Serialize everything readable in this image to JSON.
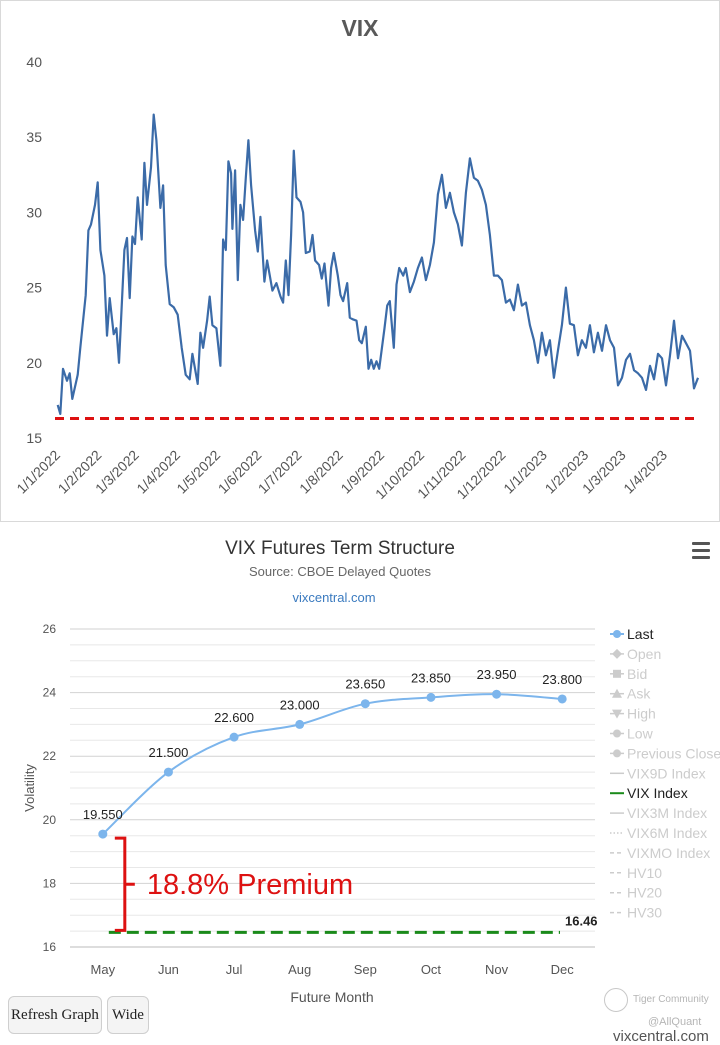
{
  "chart_data": [
    {
      "type": "line",
      "title": "VIX",
      "ylim": [
        15,
        40
      ],
      "yticks": [
        15,
        20,
        25,
        30,
        35,
        40
      ],
      "xtick_labels": [
        "1/1/2022",
        "1/2/2022",
        "1/3/2022",
        "1/4/2022",
        "1/5/2022",
        "1/6/2022",
        "1/7/2022",
        "1/8/2022",
        "1/9/2022",
        "1/10/2022",
        "1/11/2022",
        "1/12/2022",
        "1/1/2023",
        "1/2/2023",
        "1/3/2023",
        "1/4/2023"
      ],
      "x_range": [
        "2022-01-01",
        "2023-04-28"
      ],
      "reference_line": {
        "value": 16.3,
        "style": "dashed",
        "color": "#dd1111"
      },
      "line_color": "#3b6ba8",
      "series": [
        {
          "points": [
            [
              "2022-01-03",
              17.2
            ],
            [
              "2022-01-05",
              16.6
            ],
            [
              "2022-01-07",
              19.6
            ],
            [
              "2022-01-10",
              18.8
            ],
            [
              "2022-01-12",
              19.3
            ],
            [
              "2022-01-14",
              17.6
            ],
            [
              "2022-01-18",
              19.2
            ],
            [
              "2022-01-20",
              21.0
            ],
            [
              "2022-01-24",
              24.5
            ],
            [
              "2022-01-26",
              28.8
            ],
            [
              "2022-01-28",
              29.2
            ],
            [
              "2022-01-31",
              30.5
            ],
            [
              "2022-02-02",
              32.0
            ],
            [
              "2022-02-04",
              27.5
            ],
            [
              "2022-02-07",
              25.8
            ],
            [
              "2022-02-09",
              21.8
            ],
            [
              "2022-02-11",
              24.3
            ],
            [
              "2022-02-14",
              21.9
            ],
            [
              "2022-02-16",
              22.3
            ],
            [
              "2022-02-18",
              20.0
            ],
            [
              "2022-02-22",
              27.5
            ],
            [
              "2022-02-24",
              28.3
            ],
            [
              "2022-02-26",
              24.3
            ],
            [
              "2022-02-28",
              28.4
            ],
            [
              "2022-03-02",
              27.9
            ],
            [
              "2022-03-04",
              31.0
            ],
            [
              "2022-03-07",
              28.2
            ],
            [
              "2022-03-09",
              33.3
            ],
            [
              "2022-03-11",
              30.5
            ],
            [
              "2022-03-14",
              33.0
            ],
            [
              "2022-03-16",
              36.5
            ],
            [
              "2022-03-18",
              34.8
            ],
            [
              "2022-03-21",
              30.3
            ],
            [
              "2022-03-23",
              31.8
            ],
            [
              "2022-03-25",
              26.5
            ],
            [
              "2022-03-28",
              23.9
            ],
            [
              "2022-03-31",
              23.7
            ],
            [
              "2022-04-03",
              23.2
            ],
            [
              "2022-04-06",
              21.0
            ],
            [
              "2022-04-09",
              19.2
            ],
            [
              "2022-04-12",
              18.9
            ],
            [
              "2022-04-14",
              20.6
            ],
            [
              "2022-04-18",
              18.6
            ],
            [
              "2022-04-20",
              22.0
            ],
            [
              "2022-04-22",
              21.0
            ],
            [
              "2022-04-25",
              22.8
            ],
            [
              "2022-04-27",
              24.4
            ],
            [
              "2022-04-29",
              22.5
            ],
            [
              "2022-05-02",
              22.3
            ],
            [
              "2022-05-05",
              19.8
            ],
            [
              "2022-05-07",
              28.2
            ],
            [
              "2022-05-09",
              27.5
            ],
            [
              "2022-05-11",
              33.4
            ],
            [
              "2022-05-13",
              32.6
            ],
            [
              "2022-05-14",
              28.9
            ],
            [
              "2022-05-16",
              32.8
            ],
            [
              "2022-05-18",
              25.5
            ],
            [
              "2022-05-20",
              30.5
            ],
            [
              "2022-05-22",
              29.5
            ],
            [
              "2022-05-24",
              32.3
            ],
            [
              "2022-05-26",
              34.8
            ],
            [
              "2022-05-28",
              31.8
            ],
            [
              "2022-05-31",
              28.8
            ],
            [
              "2022-06-02",
              27.4
            ],
            [
              "2022-06-04",
              29.7
            ],
            [
              "2022-06-07",
              25.4
            ],
            [
              "2022-06-09",
              26.8
            ],
            [
              "2022-06-11",
              25.8
            ],
            [
              "2022-06-13",
              24.8
            ],
            [
              "2022-06-16",
              25.3
            ],
            [
              "2022-06-19",
              24.4
            ],
            [
              "2022-06-21",
              24.0
            ],
            [
              "2022-06-23",
              26.8
            ],
            [
              "2022-06-25",
              24.5
            ],
            [
              "2022-06-27",
              28.5
            ],
            [
              "2022-06-29",
              34.1
            ],
            [
              "2022-07-01",
              31.0
            ],
            [
              "2022-07-04",
              30.7
            ],
            [
              "2022-07-06",
              30.0
            ],
            [
              "2022-07-08",
              27.3
            ],
            [
              "2022-07-11",
              27.4
            ],
            [
              "2022-07-13",
              28.5
            ],
            [
              "2022-07-15",
              26.8
            ],
            [
              "2022-07-18",
              26.5
            ],
            [
              "2022-07-20",
              25.6
            ],
            [
              "2022-07-22",
              26.6
            ],
            [
              "2022-07-25",
              23.8
            ],
            [
              "2022-07-27",
              26.3
            ],
            [
              "2022-07-29",
              27.3
            ],
            [
              "2022-08-01",
              25.8
            ],
            [
              "2022-08-03",
              24.5
            ],
            [
              "2022-08-05",
              24.1
            ],
            [
              "2022-08-08",
              25.3
            ],
            [
              "2022-08-10",
              23.0
            ],
            [
              "2022-08-12",
              22.9
            ],
            [
              "2022-08-15",
              22.8
            ],
            [
              "2022-08-17",
              21.5
            ],
            [
              "2022-08-19",
              21.3
            ],
            [
              "2022-08-22",
              22.4
            ],
            [
              "2022-08-24",
              19.6
            ],
            [
              "2022-08-26",
              20.2
            ],
            [
              "2022-08-28",
              19.6
            ],
            [
              "2022-08-30",
              20.1
            ],
            [
              "2022-09-01",
              19.6
            ],
            [
              "2022-09-05",
              22.3
            ],
            [
              "2022-09-07",
              23.8
            ],
            [
              "2022-09-09",
              24.1
            ],
            [
              "2022-09-12",
              21.0
            ],
            [
              "2022-09-14",
              25.2
            ],
            [
              "2022-09-16",
              26.3
            ],
            [
              "2022-09-19",
              25.8
            ],
            [
              "2022-09-21",
              26.3
            ],
            [
              "2022-09-24",
              24.7
            ],
            [
              "2022-09-27",
              25.4
            ],
            [
              "2022-09-30",
              26.3
            ],
            [
              "2022-10-03",
              27.0
            ],
            [
              "2022-10-06",
              25.5
            ],
            [
              "2022-10-09",
              26.5
            ],
            [
              "2022-10-12",
              28.0
            ],
            [
              "2022-10-15",
              31.2
            ],
            [
              "2022-10-18",
              32.5
            ],
            [
              "2022-10-21",
              30.3
            ],
            [
              "2022-10-24",
              31.3
            ],
            [
              "2022-10-27",
              30.0
            ],
            [
              "2022-10-30",
              29.2
            ],
            [
              "2022-11-02",
              27.8
            ],
            [
              "2022-11-05",
              31.3
            ],
            [
              "2022-11-08",
              33.6
            ],
            [
              "2022-11-11",
              32.3
            ],
            [
              "2022-11-14",
              32.1
            ],
            [
              "2022-11-17",
              31.5
            ],
            [
              "2022-11-20",
              30.5
            ],
            [
              "2022-11-23",
              28.5
            ],
            [
              "2022-11-26",
              25.8
            ],
            [
              "2022-11-29",
              25.8
            ],
            [
              "2022-12-02",
              25.5
            ],
            [
              "2022-12-05",
              24.0
            ],
            [
              "2022-12-08",
              24.2
            ],
            [
              "2022-12-11",
              23.5
            ],
            [
              "2022-12-14",
              25.2
            ],
            [
              "2022-12-17",
              23.8
            ],
            [
              "2022-12-20",
              24.0
            ],
            [
              "2022-12-23",
              22.5
            ],
            [
              "2022-12-26",
              21.5
            ],
            [
              "2022-12-29",
              20.0
            ],
            [
              "2023-01-01",
              22.0
            ],
            [
              "2023-01-04",
              20.5
            ],
            [
              "2023-01-07",
              21.5
            ],
            [
              "2023-01-10",
              19.0
            ],
            [
              "2023-01-13",
              20.8
            ],
            [
              "2023-01-16",
              22.5
            ],
            [
              "2023-01-19",
              25.0
            ],
            [
              "2023-01-22",
              22.6
            ],
            [
              "2023-01-25",
              22.5
            ],
            [
              "2023-01-28",
              20.5
            ],
            [
              "2023-01-31",
              21.5
            ],
            [
              "2023-02-03",
              21.0
            ],
            [
              "2023-02-06",
              22.5
            ],
            [
              "2023-02-09",
              20.7
            ],
            [
              "2023-02-12",
              22.0
            ],
            [
              "2023-02-15",
              20.8
            ],
            [
              "2023-02-18",
              22.5
            ],
            [
              "2023-02-21",
              21.5
            ],
            [
              "2023-02-24",
              21.0
            ],
            [
              "2023-02-27",
              18.5
            ],
            [
              "2023-03-02",
              19.0
            ],
            [
              "2023-03-05",
              20.2
            ],
            [
              "2023-03-08",
              20.6
            ],
            [
              "2023-03-11",
              19.5
            ],
            [
              "2023-03-14",
              19.3
            ],
            [
              "2023-03-17",
              19.0
            ],
            [
              "2023-03-20",
              18.2
            ],
            [
              "2023-03-23",
              19.8
            ],
            [
              "2023-03-26",
              18.9
            ],
            [
              "2023-03-29",
              20.6
            ],
            [
              "2023-04-01",
              20.3
            ],
            [
              "2023-04-04",
              18.5
            ],
            [
              "2023-04-07",
              20.5
            ],
            [
              "2023-04-10",
              22.8
            ],
            [
              "2023-04-13",
              20.3
            ],
            [
              "2023-04-16",
              21.8
            ],
            [
              "2023-04-19",
              21.3
            ],
            [
              "2023-04-22",
              20.8
            ],
            [
              "2023-04-25",
              18.3
            ],
            [
              "2023-04-28",
              19.0
            ]
          ]
        }
      ]
    },
    {
      "type": "line",
      "title": "VIX Futures Term Structure",
      "subtitle": "Source: CBOE Delayed Quotes",
      "credit": "vixcentral.com",
      "xlabel": "Future Month",
      "ylabel": "Volatility",
      "ylim": [
        16,
        26
      ],
      "yticks": [
        16,
        18,
        20,
        22,
        24,
        26
      ],
      "categories": [
        "May",
        "Jun",
        "Jul",
        "Aug",
        "Sep",
        "Oct",
        "Nov",
        "Dec"
      ],
      "series": [
        {
          "name": "Last",
          "color": "#7cb5ec",
          "values": [
            19.55,
            21.5,
            22.6,
            23.0,
            23.65,
            23.85,
            23.95,
            23.8
          ],
          "labels": [
            "19.550",
            "21.500",
            "22.600",
            "23.000",
            "23.650",
            "23.850",
            "23.950",
            "23.800"
          ]
        },
        {
          "name": "VIX Index",
          "color": "#1a8a1a",
          "value": 16.46,
          "label": "16.46",
          "style": "dashed"
        }
      ],
      "annotation": {
        "text": "18.8% Premium",
        "color": "#dd1111",
        "from": 16.46,
        "to": 19.55
      },
      "legend": {
        "position": "right",
        "items": [
          {
            "label": "Last",
            "active": true,
            "symbol": "circle-line"
          },
          {
            "label": "Open",
            "active": false,
            "symbol": "diamond-line"
          },
          {
            "label": "Bid",
            "active": false,
            "symbol": "square-line"
          },
          {
            "label": "Ask",
            "active": false,
            "symbol": "triangle-line"
          },
          {
            "label": "High",
            "active": false,
            "symbol": "triangle-down-line"
          },
          {
            "label": "Low",
            "active": false,
            "symbol": "circle-line"
          },
          {
            "label": "Previous Close",
            "active": false,
            "symbol": "circle-line"
          },
          {
            "label": "VIX9D Index",
            "active": false,
            "symbol": "solid"
          },
          {
            "label": "VIX Index",
            "active": true,
            "symbol": "solid-green"
          },
          {
            "label": "VIX3M Index",
            "active": false,
            "symbol": "solid"
          },
          {
            "label": "VIX6M Index",
            "active": false,
            "symbol": "dotted"
          },
          {
            "label": "VIXMO Index",
            "active": false,
            "symbol": "dashed"
          },
          {
            "label": "HV10",
            "active": false,
            "symbol": "dashed"
          },
          {
            "label": "HV20",
            "active": false,
            "symbol": "dashed"
          },
          {
            "label": "HV30",
            "active": false,
            "symbol": "dashed"
          }
        ]
      }
    }
  ],
  "buttons": {
    "refresh": "Refresh Graph",
    "wide": "Wide"
  },
  "watermark": {
    "community": "Tiger Community",
    "handle": "@AllQuant",
    "site": "vixcentral.com"
  }
}
